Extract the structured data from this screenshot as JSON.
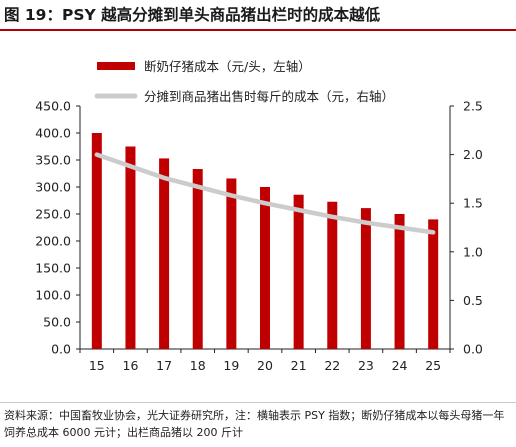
{
  "title": "图 19：PSY 越高分摊到单头商品猪出栏时的成本越低",
  "source_note": "资料来源：中国畜牧业协会，光大证券研究所，注：横轴表示 PSY 指数；断奶仔猪成本以每头母猪一年饲养总成本 6000 元计；出栏商品猪以 200 斤计",
  "colors": {
    "bar": "#c00000",
    "line": "#cccccc",
    "title_rule": "#b30000"
  },
  "chart_data": {
    "type": "bar",
    "categories": [
      "15",
      "16",
      "17",
      "18",
      "19",
      "20",
      "21",
      "22",
      "23",
      "24",
      "25"
    ],
    "series": [
      {
        "name": "断奶仔猪成本（元/头，左轴）",
        "type": "bar",
        "axis": "left",
        "values": [
          400.0,
          375.0,
          352.9,
          333.3,
          315.8,
          300.0,
          285.7,
          272.7,
          260.9,
          250.0,
          240.0
        ]
      },
      {
        "name": "分摊到商品猪出售时每斤的成本（元，右轴）",
        "type": "line",
        "axis": "right",
        "values": [
          2.0,
          1.88,
          1.76,
          1.67,
          1.58,
          1.5,
          1.43,
          1.36,
          1.3,
          1.25,
          1.2
        ]
      }
    ],
    "y_left": {
      "min": 0,
      "max": 450,
      "ticks": [
        "0.0",
        "50.0",
        "100.0",
        "150.0",
        "200.0",
        "250.0",
        "300.0",
        "350.0",
        "400.0",
        "450.0"
      ]
    },
    "y_right": {
      "min": 0,
      "max": 2.5,
      "ticks": [
        "0.0",
        "0.5",
        "1.0",
        "1.5",
        "2.0",
        "2.5"
      ]
    },
    "legend_position": "top-left",
    "grid": false
  }
}
